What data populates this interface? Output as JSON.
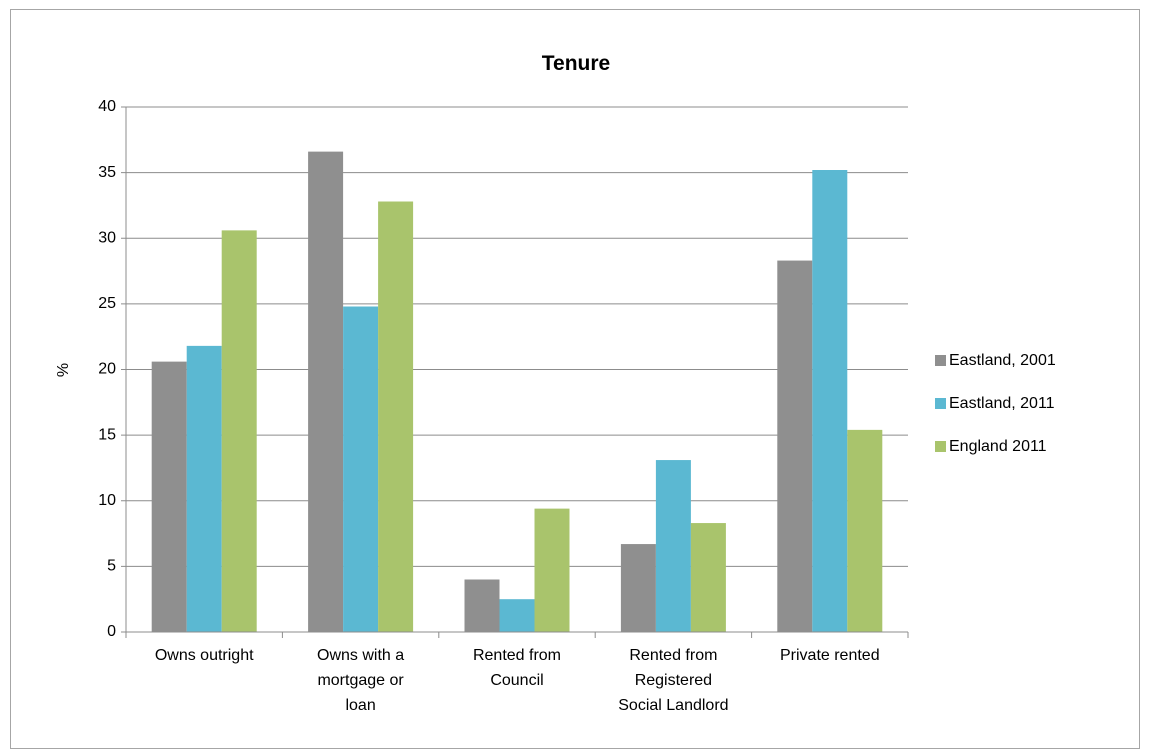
{
  "chart_data": {
    "type": "bar",
    "title": "Tenure",
    "ylabel": "%",
    "xlabel": "",
    "ylim": [
      0,
      40
    ],
    "yticks": [
      0,
      5,
      10,
      15,
      20,
      25,
      30,
      35,
      40
    ],
    "grid": true,
    "legend_position": "right",
    "categories": [
      [
        "Owns outright"
      ],
      [
        "Owns with a",
        "mortgage or",
        "loan"
      ],
      [
        "Rented from",
        "Council"
      ],
      [
        "Rented from",
        "Registered",
        "Social Landlord"
      ],
      [
        "Private rented"
      ]
    ],
    "series": [
      {
        "name": "Eastland, 2001",
        "color": "#8f8f8f",
        "values": [
          20.6,
          36.6,
          4.0,
          6.7,
          28.3
        ]
      },
      {
        "name": "Eastland, 2011",
        "color": "#5bb8d2",
        "values": [
          21.8,
          24.8,
          2.5,
          13.1,
          35.2
        ]
      },
      {
        "name": "England 2011",
        "color": "#a9c46c",
        "values": [
          30.6,
          32.8,
          9.4,
          8.3,
          15.4
        ]
      }
    ]
  }
}
